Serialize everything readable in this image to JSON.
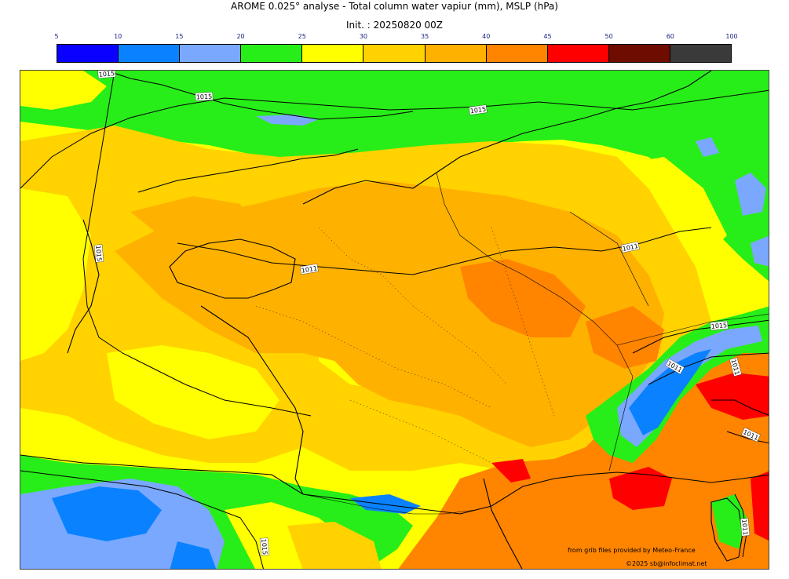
{
  "header": {
    "title": "AROME 0.025° analyse - Total column water vapiur (mm), MSLP (hPa)",
    "init": "Init. : 20250820 00Z"
  },
  "colorbar": {
    "ticks": [
      "5",
      "10",
      "15",
      "20",
      "25",
      "30",
      "35",
      "40",
      "45",
      "50",
      "60",
      "100"
    ],
    "colors": [
      "#0a00ff",
      "#0a82ff",
      "#7aa8ff",
      "#27ee18",
      "#ffff00",
      "#ffd200",
      "#ffb100",
      "#ff8400",
      "#ff0000",
      "#6e0c00",
      "#3a3a3a"
    ]
  },
  "map": {
    "isobar_labels": [
      "1015",
      "1015",
      "1015",
      "1015",
      "1011",
      "1011",
      "1015",
      "1011",
      "1011",
      "1011",
      "1015",
      "1011"
    ]
  },
  "credits": {
    "source": "from grib files provided by Meteo-France",
    "copyright": "©2025 sb@infoclimat.net"
  }
}
